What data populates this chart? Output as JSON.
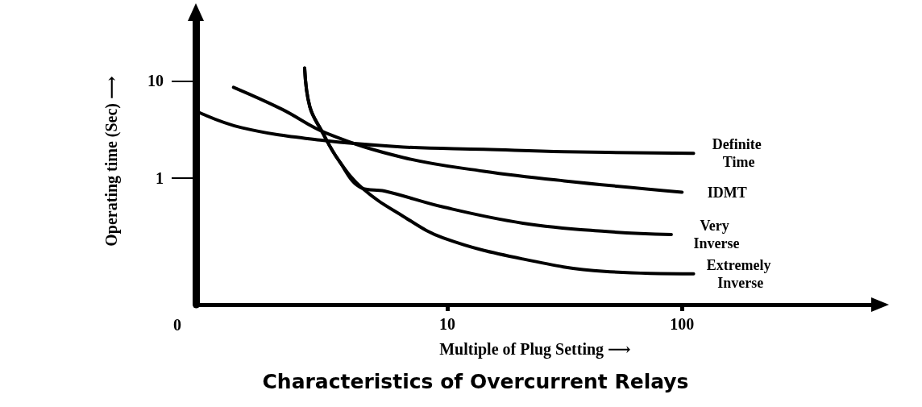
{
  "chart_data": {
    "type": "line",
    "title": "Characteristics of Overcurrent Relays",
    "xlabel": "Multiple of Plug Setting ⟶",
    "ylabel": "Operating time (Sec) ⟶",
    "log": "xy",
    "xlim": [
      0.85,
      660
    ],
    "xticks": [
      10,
      100
    ],
    "annotations": [
      "0"
    ],
    "ylim": [
      0.049,
      45
    ],
    "yticks": [
      1,
      10
    ],
    "series": [
      {
        "name": "Definite Time",
        "color": "#000000",
        "x": [
          0.85,
          1.33,
          2.93,
          6.5,
          14.3,
          31.5,
          112
        ],
        "values": [
          4.9,
          3.3,
          2.44,
          2.08,
          1.97,
          1.86,
          1.79
        ]
      },
      {
        "name": "IDMT",
        "color": "#000000",
        "x": [
          1.23,
          1.98,
          3.05,
          6.5,
          14.3,
          31.5,
          100
        ],
        "values": [
          8.6,
          5.1,
          2.9,
          1.62,
          1.17,
          0.93,
          0.71
        ]
      },
      {
        "name": "Very Inverse",
        "color": "#000000",
        "x": [
          2.47,
          2.6,
          2.93,
          3.44,
          4.35,
          5.4,
          9.6,
          21,
          46.8,
          90
        ],
        "values": [
          13.6,
          5.4,
          3.0,
          1.53,
          0.78,
          0.73,
          0.5,
          0.34,
          0.28,
          0.26
        ]
      },
      {
        "name": "Extremely Inverse",
        "color": "#000000",
        "x": [
          2.47,
          2.6,
          2.93,
          3.44,
          4.35,
          6.5,
          9.6,
          21,
          46.8,
          112
        ],
        "values": [
          13.6,
          5.4,
          3.0,
          1.53,
          0.78,
          0.4,
          0.24,
          0.145,
          0.108,
          0.102
        ]
      }
    ]
  }
}
